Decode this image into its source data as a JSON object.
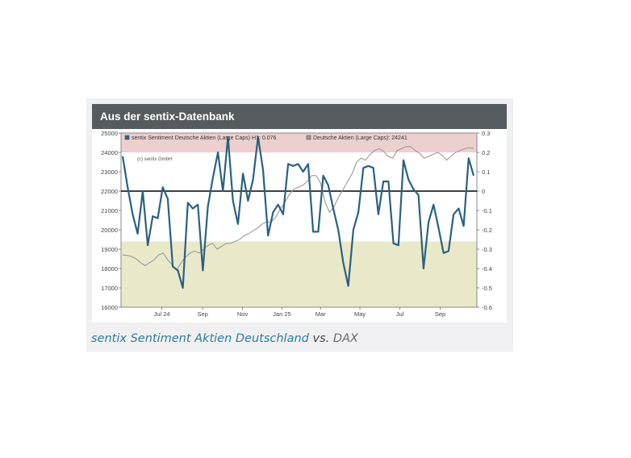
{
  "header": {
    "title": "Aus der sentix-Datenbank"
  },
  "caption": {
    "series_name": "sentix Sentiment Aktien Deutschland",
    "vs": "vs.",
    "index": "DAX"
  },
  "chart_data": {
    "type": "line",
    "watermark": "(c) sentix GmbH",
    "legend": [
      {
        "label": "sentix Sentiment Deutsche Aktien (Large Caps) H1: 0.076",
        "color": "#2a6180"
      },
      {
        "label": "Deutsche Aktien (Large Caps): 24241",
        "color": "#9a9a9a"
      }
    ],
    "x_ticks": [
      {
        "label": "Jul 24",
        "t": 9
      },
      {
        "label": "Sep",
        "t": 18
      },
      {
        "label": "Nov",
        "t": 26.8
      },
      {
        "label": "Jan 25",
        "t": 35.5
      },
      {
        "label": "Mar",
        "t": 44
      },
      {
        "label": "May",
        "t": 52.7
      },
      {
        "label": "Jul",
        "t": 61.5
      },
      {
        "label": "Sep",
        "t": 70.4
      }
    ],
    "x_range": [
      0,
      78.5
    ],
    "y_left": {
      "range": [
        16000,
        25000
      ],
      "ticks": [
        "16000",
        "17000",
        "18000",
        "19000",
        "20000",
        "21000",
        "22000",
        "23000",
        "24000",
        "25000"
      ]
    },
    "y_right": {
      "range": [
        -0.6,
        0.3
      ],
      "ticks": [
        "-0.6",
        "-0.5",
        "-0.4",
        "-0.3",
        "-0.2",
        "-0.1",
        "0",
        "0.1",
        "0.2",
        "0.3"
      ]
    },
    "bands": [
      {
        "from": 0.2,
        "to": 0.3,
        "axis": "right",
        "color": "#edcfcf"
      },
      {
        "from": -0.6,
        "to": -0.26,
        "axis": "right",
        "color": "#e9e8c9"
      }
    ],
    "zero_line": 0,
    "series": [
      {
        "name": "sentix Sentiment Deutsche Aktien (Large Caps)",
        "axis": "right",
        "color": "#2a6180",
        "y": [
          0.18,
          0.02,
          -0.12,
          -0.22,
          0.0,
          -0.28,
          -0.13,
          -0.14,
          0.02,
          -0.04,
          -0.39,
          -0.41,
          -0.5,
          -0.06,
          -0.09,
          -0.07,
          -0.41,
          -0.08,
          0.07,
          0.2,
          0.0,
          0.28,
          -0.05,
          -0.17,
          0.09,
          -0.05,
          0.06,
          0.28,
          0.11,
          -0.23,
          -0.11,
          -0.07,
          -0.12,
          0.14,
          0.13,
          0.14,
          0.1,
          0.14,
          -0.21,
          -0.21,
          0.08,
          0.03,
          -0.09,
          -0.2,
          -0.37,
          -0.49,
          -0.2,
          -0.11,
          0.12,
          0.13,
          0.12,
          -0.12,
          0.05,
          0.05,
          -0.27,
          -0.28,
          0.16,
          0.06,
          0.01,
          -0.02,
          -0.4,
          -0.16,
          -0.07,
          -0.19,
          -0.32,
          -0.31,
          -0.12,
          -0.09,
          -0.18,
          0.17,
          0.08
        ]
      },
      {
        "name": "Deutsche Aktien (Large Caps)",
        "axis": "left",
        "color": "#9a9a9a",
        "y": [
          18700,
          18680,
          18620,
          18500,
          18300,
          18150,
          18300,
          18450,
          18700,
          18800,
          18450,
          18200,
          17900,
          18300,
          18600,
          18800,
          18900,
          18800,
          19000,
          19200,
          19300,
          19000,
          19150,
          19300,
          19300,
          19400,
          19500,
          19700,
          19800,
          19950,
          20100,
          20300,
          20400,
          20400,
          20650,
          21050,
          21400,
          21800,
          22100,
          22200,
          22300,
          22500,
          22800,
          22800,
          22400,
          21400,
          20900,
          21200,
          21700,
          22100,
          22500,
          22900,
          23500,
          23700,
          23600,
          23900,
          24100,
          24200,
          24050,
          23800,
          23700,
          24100,
          24200,
          24300,
          24300,
          24100,
          23950,
          23700,
          23800,
          23900,
          24000,
          23850,
          23600,
          23800,
          24000,
          24100,
          24200,
          24241,
          24200
        ]
      }
    ]
  }
}
